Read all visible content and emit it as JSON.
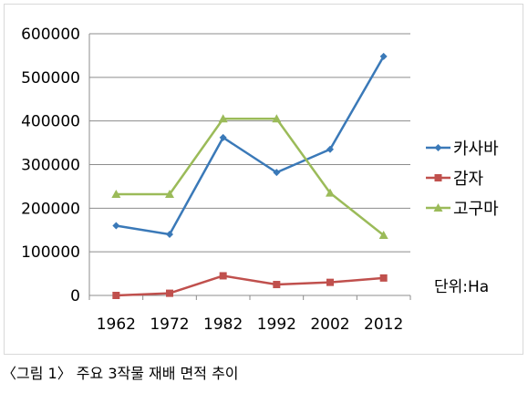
{
  "chart_data": {
    "type": "line",
    "categories": [
      "1962",
      "1972",
      "1982",
      "1992",
      "2002",
      "2012"
    ],
    "series": [
      {
        "name": "카사바",
        "values": [
          160000,
          140000,
          362000,
          282000,
          335000,
          548000
        ],
        "color": "#3a79b8",
        "marker": "diamond"
      },
      {
        "name": "감자",
        "values": [
          0,
          5000,
          45000,
          25000,
          30000,
          40000
        ],
        "color": "#c0504d",
        "marker": "square"
      },
      {
        "name": "고구마",
        "values": [
          232000,
          232000,
          405000,
          405000,
          235000,
          138000
        ],
        "color": "#9bbb59",
        "marker": "triangle"
      }
    ],
    "ylim": [
      0,
      600000
    ],
    "yticks": [
      "0",
      "100000",
      "200000",
      "300000",
      "400000",
      "500000",
      "600000"
    ],
    "grid": "horizontal",
    "legend": "right",
    "unit_label": "단위:Ha"
  },
  "caption": "〈그림 1〉 주요 3작물 재배 면적 추이"
}
